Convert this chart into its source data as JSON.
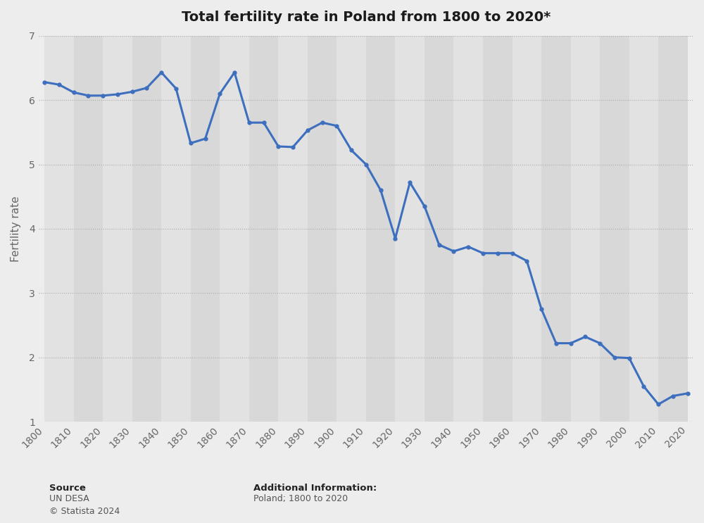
{
  "title": "Total fertility rate in Poland from 1800 to 2020*",
  "ylabel": "Fertility rate",
  "line_color": "#3d6fbe",
  "line_width": 2.2,
  "marker_size": 3.5,
  "ylim": [
    1,
    7
  ],
  "xlim": [
    1798,
    2022
  ],
  "yticks": [
    1,
    2,
    3,
    4,
    5,
    6,
    7
  ],
  "bg_color": "#ededed",
  "plot_bg_color": "#ededed",
  "stripe_color_light": "#e8e8e8",
  "stripe_color_dark": "#dcdcdc",
  "title_fontsize": 14,
  "axis_label_fontsize": 11,
  "tick_fontsize": 10,
  "source_label": "Source",
  "source_body": "UN DESA\n© Statista 2024",
  "add_info_label": "Additional Information:",
  "add_info_body": "Poland; 1800 to 2020",
  "years": [
    1800,
    1805,
    1810,
    1815,
    1820,
    1825,
    1830,
    1835,
    1840,
    1845,
    1850,
    1855,
    1860,
    1865,
    1870,
    1875,
    1880,
    1885,
    1890,
    1895,
    1900,
    1905,
    1910,
    1915,
    1920,
    1925,
    1930,
    1935,
    1940,
    1945,
    1950,
    1955,
    1960,
    1965,
    1970,
    1975,
    1980,
    1985,
    1990,
    1995,
    2000,
    2005,
    2010,
    2015,
    2020
  ],
  "values": [
    6.28,
    6.24,
    6.12,
    6.07,
    6.07,
    6.09,
    6.13,
    6.19,
    6.43,
    6.18,
    5.33,
    5.4,
    6.1,
    6.43,
    5.65,
    5.65,
    5.28,
    5.27,
    5.53,
    5.65,
    5.6,
    5.22,
    5.0,
    4.6,
    3.85,
    4.72,
    4.35,
    3.75,
    3.65,
    3.72,
    3.62,
    3.62,
    3.62,
    3.5,
    2.75,
    2.22,
    2.22,
    2.32,
    2.22,
    2.0,
    1.99,
    1.55,
    1.27,
    1.4,
    1.44
  ]
}
